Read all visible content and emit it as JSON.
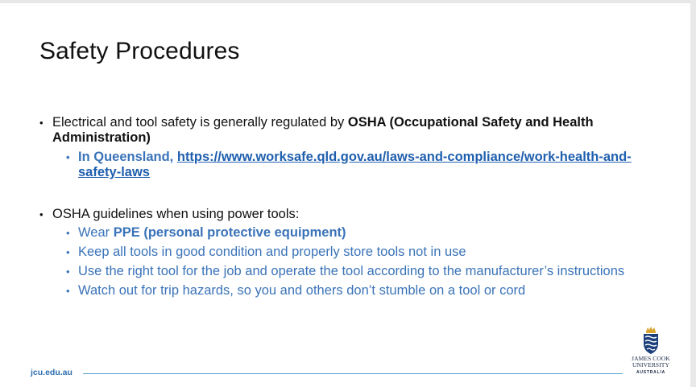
{
  "slide": {
    "title": "Safety Procedures",
    "bullet1": {
      "pre": "Electrical and tool safety is generally regulated by ",
      "bold": "OSHA (Occupational Safety and Health Administration)",
      "sub": {
        "pre": "In Queensland, ",
        "link": "https://www.worksafe.qld.gov.au/laws-and-compliance/work-health-and-safety-laws"
      }
    },
    "bullet2": {
      "text": "OSHA guidelines when using power tools:",
      "subs": {
        "s1_pre": "Wear ",
        "s1_bold": "PPE (personal protective equipment)",
        "s2": "Keep all tools in good condition and properly store tools not in use",
        "s3": "Use the right tool for the job and operate the tool according to the manufacturer’s instructions",
        "s4": "Watch out for trip hazards, so you and others don’t stumble on a tool or cord"
      }
    }
  },
  "footer": {
    "url": "jcu.edu.au",
    "logo_line1": "JAMES COOK",
    "logo_line2": "UNIVERSITY",
    "logo_line3": "AUSTRALIA"
  },
  "colors": {
    "accent_blue": "#3a73b8",
    "link_blue": "#1f5fae",
    "footer_line": "#57a0cc",
    "logo_navy": "#1b2a44",
    "logo_gold": "#d9a531"
  },
  "icons": {
    "logo": "jcu-crest-icon"
  }
}
